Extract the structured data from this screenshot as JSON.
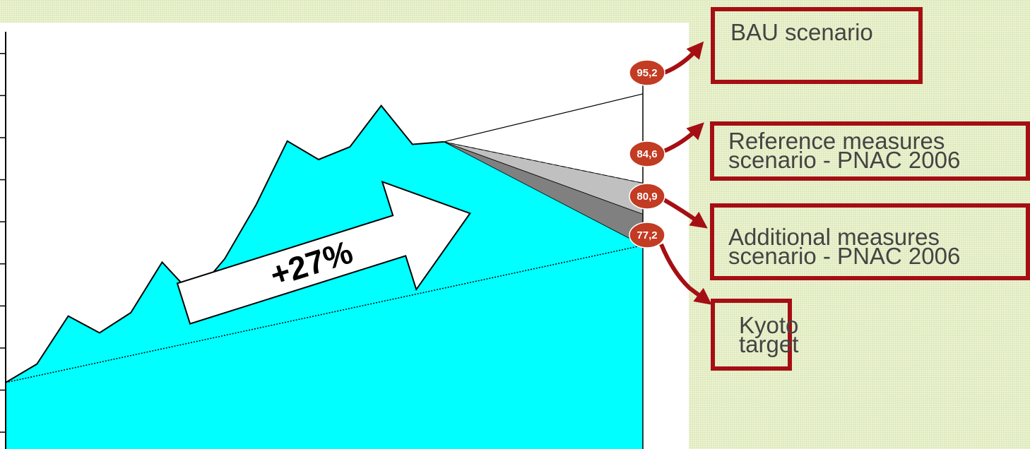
{
  "chart_data": {
    "type": "area",
    "historical": {
      "name": "",
      "x_index": [
        0,
        1,
        2,
        3,
        4,
        5,
        6,
        7,
        8,
        9,
        10,
        11,
        12,
        13,
        14
      ],
      "values": [
        60.9,
        63.1,
        68.8,
        66.8,
        69.2,
        75.2,
        71.2,
        75.6,
        82.0,
        89.6,
        87.4,
        88.9,
        93.8,
        89.2,
        89.5
      ]
    },
    "projections": [
      {
        "name": "BAU scenario",
        "end_value": 95.2
      },
      {
        "name": "Reference measures scenario - PNAC 2006",
        "end_value": 84.6
      },
      {
        "name": "Additional measures scenario - PNAC 2006",
        "end_value": 80.9
      }
    ],
    "target": {
      "name": "Kyoto target",
      "start_value": 60.9,
      "end_value": 77.2
    },
    "growth_label": "+27%",
    "ylim": [
      53,
      103
    ],
    "xlabel": "",
    "ylabel": "",
    "title": "",
    "colors": {
      "area": "#00ffff",
      "reference_band": "#c0c0c0",
      "additional_band": "#808080",
      "accent": "#a50f14",
      "badge": "#c23b22"
    }
  },
  "labels": {
    "bau": "BAU scenario",
    "reference": "Reference measures\nscenario - PNAC 2006",
    "additional": "Additional measures\nscenario - PNAC 2006",
    "kyoto": "Kyoto\ntarget"
  },
  "badges": [
    "95,2",
    "84,6",
    "80,9",
    "77,2"
  ]
}
